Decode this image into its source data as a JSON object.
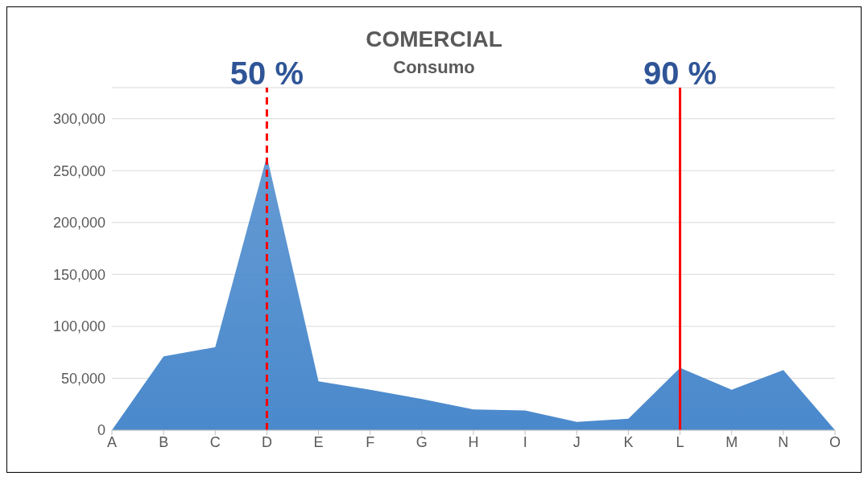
{
  "chart_data": {
    "type": "area",
    "title": "COMERCIAL",
    "subtitle": "Consumo",
    "categories": [
      "A",
      "B",
      "C",
      "D",
      "E",
      "F",
      "G",
      "H",
      "I",
      "J",
      "K",
      "L",
      "M",
      "N",
      "O"
    ],
    "values": [
      0,
      71000,
      80000,
      264000,
      47000,
      39000,
      30000,
      20000,
      19000,
      8000,
      11000,
      60000,
      39000,
      58000,
      0
    ],
    "color": "#4a89cc",
    "ylim": [
      0,
      330000
    ],
    "yticks": [
      {
        "value": 0,
        "label": "0"
      },
      {
        "value": 50000,
        "label": "50,000"
      },
      {
        "value": 100000,
        "label": "100,000"
      },
      {
        "value": 150000,
        "label": "150,000"
      },
      {
        "value": 200000,
        "label": "200,000"
      },
      {
        "value": 250000,
        "label": "250,000"
      },
      {
        "value": 300000,
        "label": "300,000"
      }
    ],
    "grid": "y",
    "ref_lines": [
      {
        "axis": "x",
        "value": "D",
        "label": "50 %",
        "color": "#ff0000",
        "line_style": "dashed"
      },
      {
        "axis": "x",
        "value": "L",
        "label": "90 %",
        "color": "#ff0000",
        "line_style": "solid"
      }
    ]
  }
}
